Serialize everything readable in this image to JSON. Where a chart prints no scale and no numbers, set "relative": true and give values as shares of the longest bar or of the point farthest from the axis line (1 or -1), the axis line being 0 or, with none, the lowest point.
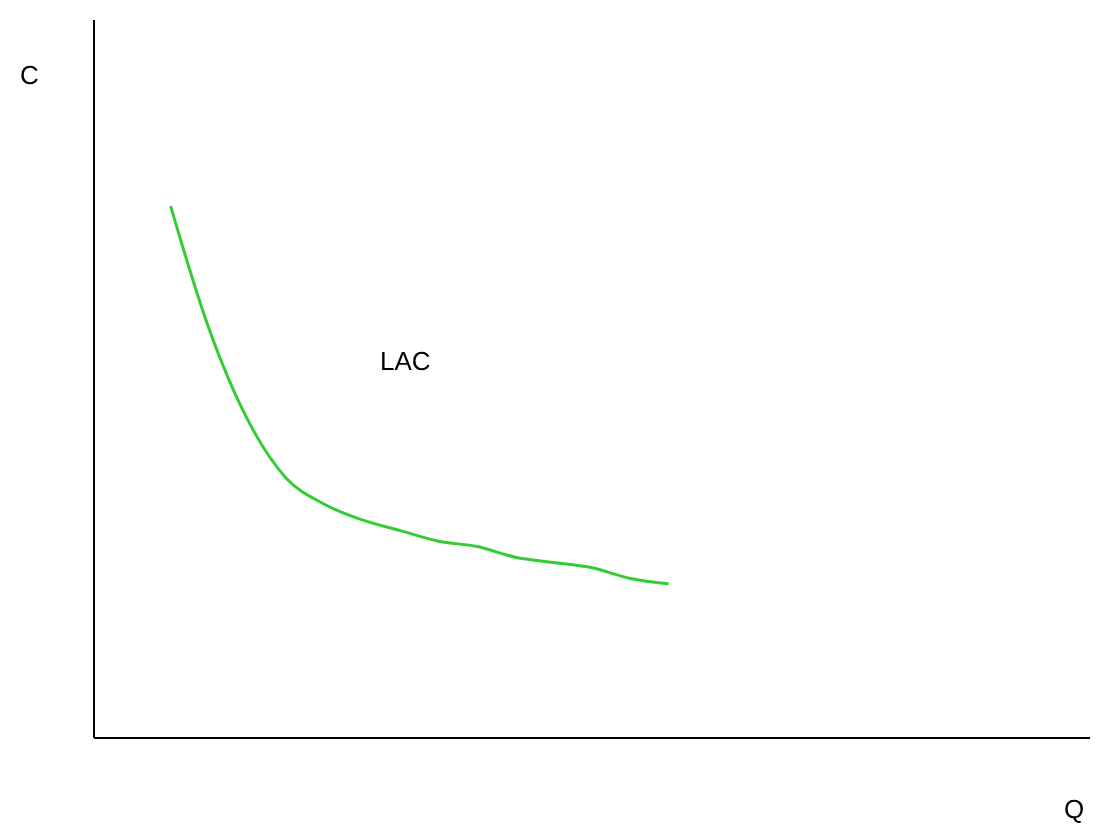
{
  "chart_data": {
    "type": "line",
    "xlabel": "Q",
    "ylabel": "C",
    "relative": true,
    "categories": [
      null,
      null,
      null,
      null,
      null,
      null,
      null,
      null,
      null,
      null,
      null,
      null,
      null,
      null,
      null,
      null,
      null,
      null,
      null,
      null,
      null,
      null,
      null,
      null,
      null,
      null,
      null
    ],
    "series": [
      {
        "name": "LAC",
        "color": "#33cc33",
        "values": [
          null,
          null,
          1,
          0.77,
          0.6,
          0.49,
          0.44,
          0.41,
          0.39,
          0.37,
          0.36,
          0.34,
          0.33,
          0.32,
          0.3,
          0.29,
          null,
          null,
          null,
          null,
          null,
          null,
          null,
          null,
          null,
          null,
          null
        ]
      }
    ]
  }
}
